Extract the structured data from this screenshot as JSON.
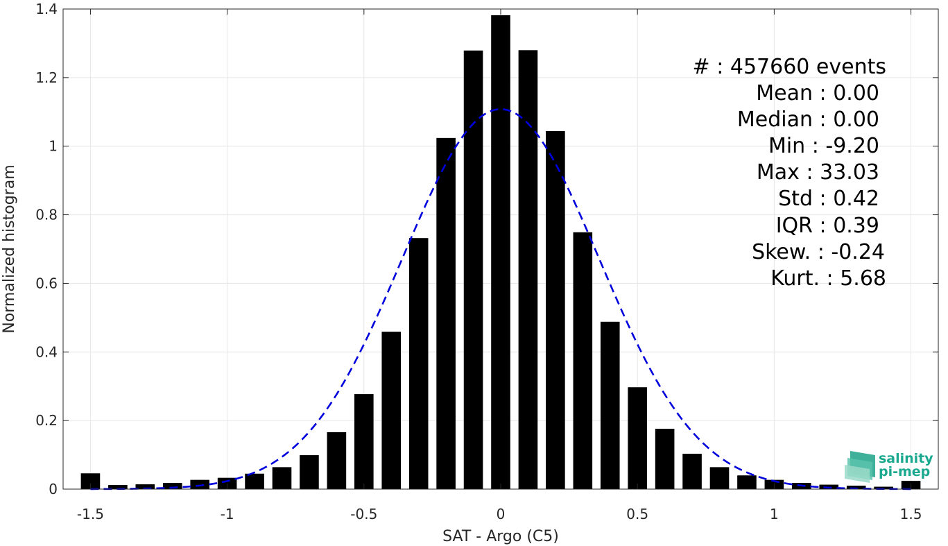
{
  "chart_data": {
    "type": "bar",
    "xlabel": "SAT - Argo (C5)",
    "ylabel": "Normalized histogram",
    "xlim": [
      -1.6,
      1.6
    ],
    "ylim": [
      0,
      1.4
    ],
    "xticks": [
      -1.5,
      -1,
      -0.5,
      0,
      0.5,
      1,
      1.5
    ],
    "xtick_labels": [
      "-1.5",
      "-1",
      "-0.5",
      "0",
      "0.5",
      "1",
      "1.5"
    ],
    "yticks": [
      0,
      0.2,
      0.4,
      0.6,
      0.8,
      1,
      1.2,
      1.4
    ],
    "ytick_labels": [
      "0",
      "0.2",
      "0.4",
      "0.6",
      "0.8",
      "1",
      "1.2",
      "1.4"
    ],
    "grid": true,
    "bar_width": 0.07,
    "bars": {
      "x": [
        -1.5,
        -1.4,
        -1.3,
        -1.2,
        -1.1,
        -1.0,
        -0.9,
        -0.8,
        -0.7,
        -0.6,
        -0.5,
        -0.4,
        -0.3,
        -0.2,
        -0.1,
        0.0,
        0.1,
        0.2,
        0.3,
        0.4,
        0.5,
        0.6,
        0.7,
        0.8,
        0.9,
        1.0,
        1.1,
        1.2,
        1.3,
        1.4,
        1.5
      ],
      "values": [
        0.046,
        0.012,
        0.014,
        0.018,
        0.027,
        0.033,
        0.045,
        0.064,
        0.099,
        0.166,
        0.277,
        0.459,
        0.732,
        1.024,
        1.279,
        1.382,
        1.28,
        1.044,
        0.749,
        0.488,
        0.297,
        0.176,
        0.103,
        0.064,
        0.04,
        0.027,
        0.018,
        0.013,
        0.01,
        0.007,
        0.024
      ],
      "color": "#000000"
    },
    "fit_curve": {
      "style": "dashed",
      "color": "#0000dd",
      "mean": 0.0,
      "std": 0.36,
      "peak": 1.108,
      "x_range": [
        -1.5,
        1.5
      ]
    },
    "annotations": [
      "#  : 457660 events",
      "Mean : 0.00",
      "Median : 0.00",
      "Min : -9.20",
      "Max : 33.03",
      "Std : 0.42",
      "IQR : 0.39",
      "Skew. : -0.24",
      "Kurt. : 5.68"
    ]
  },
  "logo": {
    "line1": "salinity",
    "line2": "pi-mep",
    "color": "#1aa88f"
  }
}
